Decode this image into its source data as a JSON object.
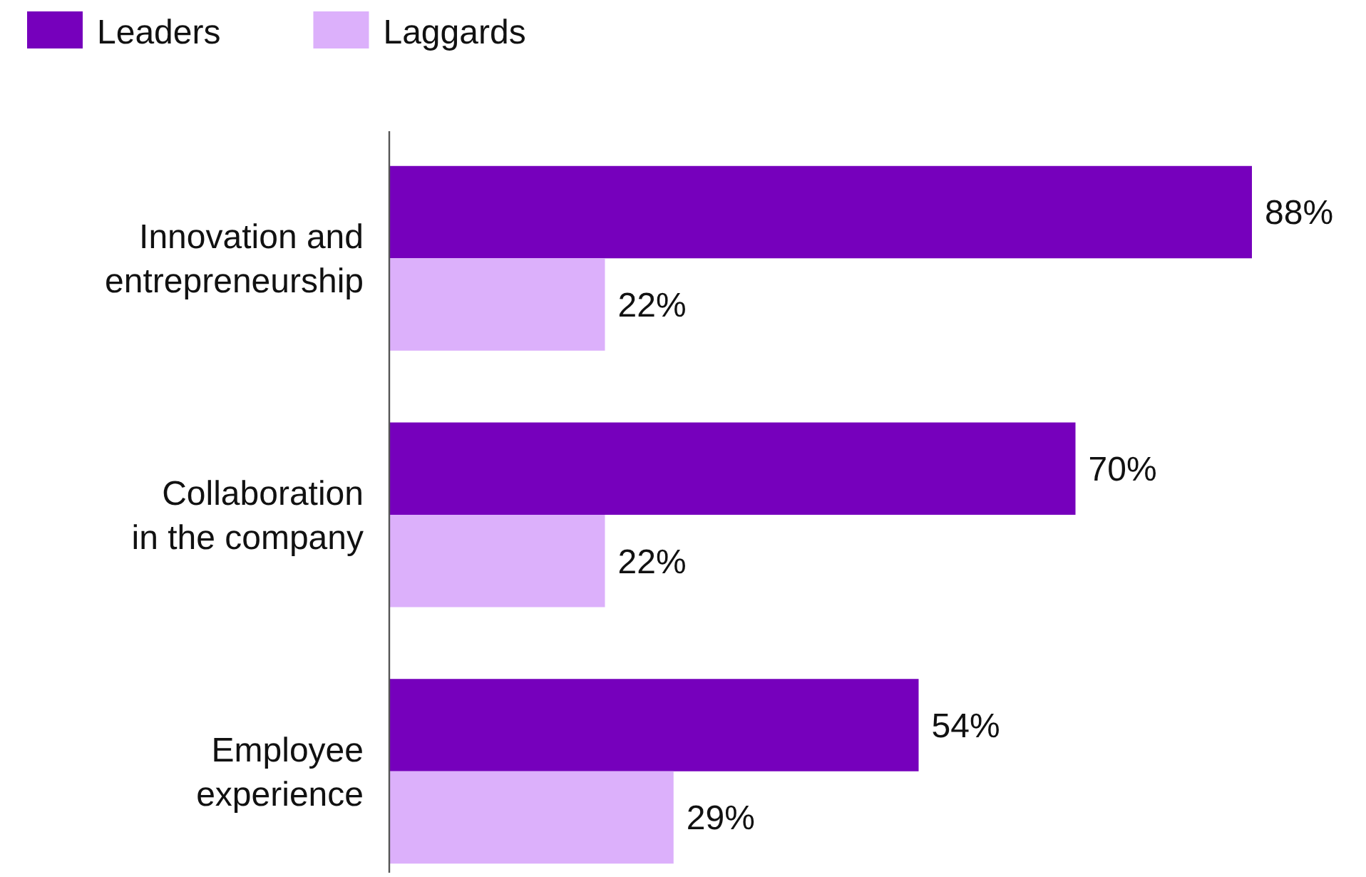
{
  "chart_data": {
    "type": "bar",
    "orientation": "horizontal",
    "categories": [
      "Innovation and\nentrepreneurship",
      "Collaboration\nin the company",
      "Employee\nexperience"
    ],
    "tick_labels": "y",
    "legend": "top left",
    "grid": false,
    "series": [
      {
        "name": "Leaders",
        "color": "#7600bc",
        "values": [
          88,
          70,
          54
        ],
        "value_labels": [
          "88%",
          "70%",
          "54%"
        ]
      },
      {
        "name": "Laggards",
        "color": "#dcb0fb",
        "values": [
          22,
          22,
          29
        ],
        "value_labels": [
          "22%",
          "22%",
          "29%"
        ]
      }
    ]
  }
}
